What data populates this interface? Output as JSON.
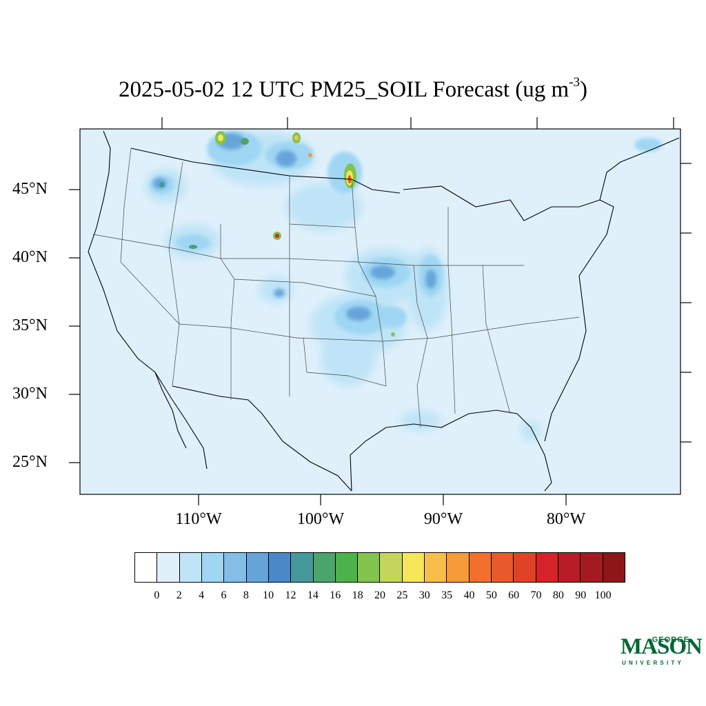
{
  "title": {
    "main": "2025-05-02 12 UTC PM25_SOIL Forecast (ug m",
    "superscript": "-3",
    "close": ")"
  },
  "map": {
    "background_color": "#dff0fb",
    "latitude_labels": [
      "45°N",
      "40°N",
      "35°N",
      "30°N",
      "25°N"
    ],
    "longitude_labels": [
      "110°W",
      "100°W",
      "90°W",
      "80°W"
    ]
  },
  "legend": {
    "colors": [
      "#ffffff",
      "#dff0fb",
      "#bfe4f7",
      "#9fd6f3",
      "#84bde6",
      "#66a4da",
      "#4a88c7",
      "#46999a",
      "#4aa56a",
      "#4cb34a",
      "#82c44c",
      "#c3d65a",
      "#f5e65a",
      "#f7be4a",
      "#f69a3a",
      "#f3702c",
      "#e85a2c",
      "#df4327",
      "#d5232a",
      "#b81c26",
      "#a31a20",
      "#8e1618"
    ],
    "ticks": [
      "0",
      "2",
      "4",
      "6",
      "8",
      "10",
      "12",
      "14",
      "16",
      "18",
      "20",
      "25",
      "30",
      "35",
      "40",
      "50",
      "60",
      "70",
      "80",
      "90",
      "100"
    ]
  },
  "logo": {
    "line1": "GEORGE",
    "line2": "MASON",
    "line3": "UNIVERSITY",
    "color": "#006633"
  }
}
